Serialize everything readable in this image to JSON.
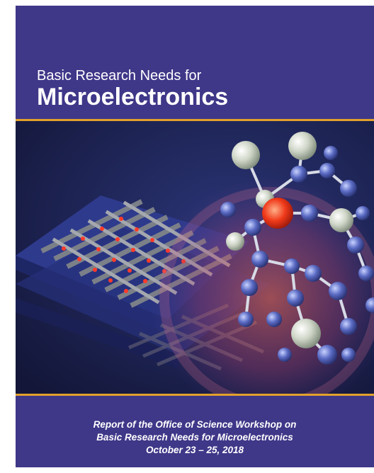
{
  "cover": {
    "subtitle": "Basic Research Needs for",
    "title": "Microelectronics",
    "report_line_1": "Report of the Office of Science Workshop on",
    "report_line_2": "Basic Research Needs for Microelectronics",
    "report_line_3": "October 23 – 25, 2018"
  },
  "colors": {
    "background_purple": "#3f3788",
    "accent_gold": "#e2a12b",
    "art_navy": "#1a1f4e",
    "text": "#ffffff"
  }
}
